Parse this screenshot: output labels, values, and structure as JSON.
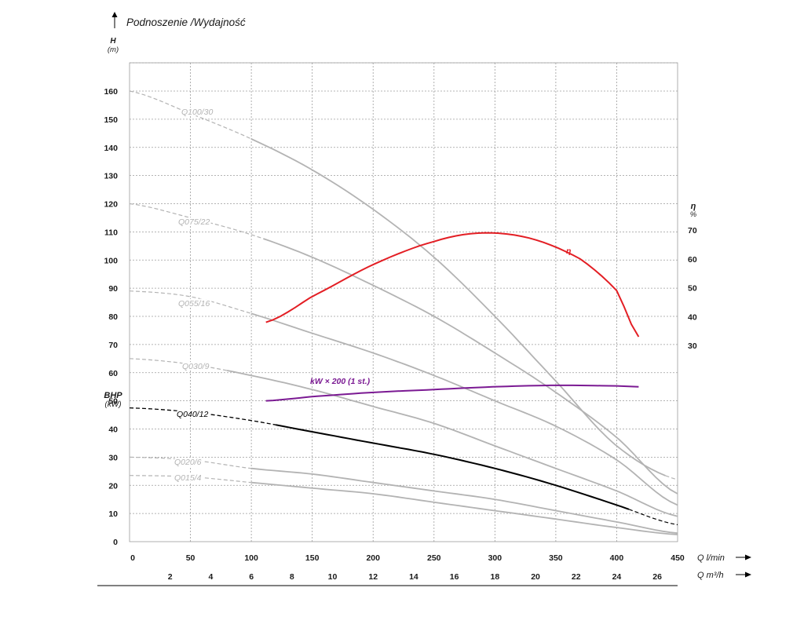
{
  "chart_data": {
    "type": "line",
    "title": "Podnoszenie /Wydajność",
    "y_axis": {
      "label": "H",
      "unit": "(m)",
      "ylim": [
        0,
        160
      ],
      "ticks": [
        0,
        10,
        20,
        30,
        40,
        50,
        60,
        70,
        80,
        90,
        100,
        110,
        120,
        130,
        140,
        150,
        160
      ]
    },
    "power_axis": {
      "label": "BHP",
      "unit": "(kW)"
    },
    "eff_axis": {
      "label": "η",
      "unit": "%",
      "ticks": [
        30,
        40,
        50,
        60,
        70
      ]
    },
    "x_axis": {
      "label": "Q",
      "unit": "l/min",
      "xlim": [
        0,
        450
      ],
      "ticks": [
        0,
        50,
        100,
        150,
        200,
        250,
        300,
        350,
        400,
        450
      ]
    },
    "x2_axis": {
      "label": "Q",
      "unit": "m³/h",
      "ticks": [
        2,
        4,
        6,
        8,
        10,
        12,
        14,
        16,
        18,
        20,
        22,
        24,
        26
      ]
    },
    "grid": true,
    "series": [
      {
        "name": "Q100/30",
        "color": "#b3b3b3",
        "dash_until": 100,
        "solid_until": 440,
        "points": [
          [
            0,
            160
          ],
          [
            50,
            152
          ],
          [
            100,
            143
          ],
          [
            150,
            132
          ],
          [
            200,
            118
          ],
          [
            250,
            101
          ],
          [
            300,
            80
          ],
          [
            350,
            57
          ],
          [
            400,
            34
          ],
          [
            450,
            22
          ]
        ]
      },
      {
        "name": "Q075/22",
        "color": "#b3b3b3",
        "dash_until": 110,
        "solid_until": 450,
        "points": [
          [
            0,
            120
          ],
          [
            50,
            115
          ],
          [
            100,
            109
          ],
          [
            150,
            101
          ],
          [
            200,
            91
          ],
          [
            250,
            80
          ],
          [
            300,
            67
          ],
          [
            350,
            53
          ],
          [
            400,
            37
          ],
          [
            450,
            17
          ]
        ]
      },
      {
        "name": "Q055/16",
        "color": "#b3b3b3",
        "dash_until": 100,
        "solid_until": 450,
        "points": [
          [
            0,
            89
          ],
          [
            50,
            87
          ],
          [
            100,
            81
          ],
          [
            150,
            74
          ],
          [
            200,
            67
          ],
          [
            250,
            59
          ],
          [
            300,
            50
          ],
          [
            350,
            41
          ],
          [
            400,
            29
          ],
          [
            450,
            13
          ]
        ]
      },
      {
        "name": "Q030/9",
        "color": "#b3b3b3",
        "dash_until": 80,
        "solid_until": 450,
        "points": [
          [
            0,
            65
          ],
          [
            50,
            63
          ],
          [
            100,
            59
          ],
          [
            150,
            54
          ],
          [
            200,
            48
          ],
          [
            250,
            42
          ],
          [
            300,
            34
          ],
          [
            350,
            26
          ],
          [
            400,
            18
          ],
          [
            450,
            9
          ]
        ]
      },
      {
        "name": "Q040/12",
        "color": "#000000",
        "dash_until": 120,
        "solid_until": 410,
        "points": [
          [
            0,
            47.5
          ],
          [
            50,
            46
          ],
          [
            100,
            43
          ],
          [
            150,
            39
          ],
          [
            200,
            35
          ],
          [
            250,
            31
          ],
          [
            300,
            26
          ],
          [
            350,
            20
          ],
          [
            400,
            13
          ],
          [
            450,
            6
          ]
        ]
      },
      {
        "name": "Q020/6",
        "color": "#b3b3b3",
        "dash_until": 100,
        "solid_until": 450,
        "points": [
          [
            0,
            30
          ],
          [
            50,
            29
          ],
          [
            100,
            26
          ],
          [
            150,
            24
          ],
          [
            200,
            21
          ],
          [
            250,
            18
          ],
          [
            300,
            15
          ],
          [
            350,
            11
          ],
          [
            400,
            7
          ],
          [
            450,
            3
          ]
        ]
      },
      {
        "name": "Q015/4",
        "color": "#b3b3b3",
        "dash_until": 100,
        "solid_until": 450,
        "points": [
          [
            0,
            23.5
          ],
          [
            50,
            23
          ],
          [
            100,
            21
          ],
          [
            150,
            19
          ],
          [
            200,
            17
          ],
          [
            250,
            14
          ],
          [
            300,
            11
          ],
          [
            350,
            8
          ],
          [
            400,
            5
          ],
          [
            450,
            2.5
          ]
        ]
      },
      {
        "name": "η",
        "color": "#e31e24",
        "axis": "eff",
        "points": [
          [
            112,
            38
          ],
          [
            150,
            47
          ],
          [
            200,
            58
          ],
          [
            250,
            66
          ],
          [
            290,
            69
          ],
          [
            330,
            67
          ],
          [
            370,
            60
          ],
          [
            400,
            49
          ],
          [
            418,
            33
          ]
        ]
      },
      {
        "name": "kW × 200 (1 st.)",
        "color": "#7b1a93",
        "axis": "power",
        "points": [
          [
            112,
            50
          ],
          [
            150,
            51.5
          ],
          [
            200,
            53
          ],
          [
            250,
            54
          ],
          [
            300,
            55
          ],
          [
            350,
            55.5
          ],
          [
            400,
            55.3
          ],
          [
            418,
            55
          ]
        ]
      }
    ]
  }
}
